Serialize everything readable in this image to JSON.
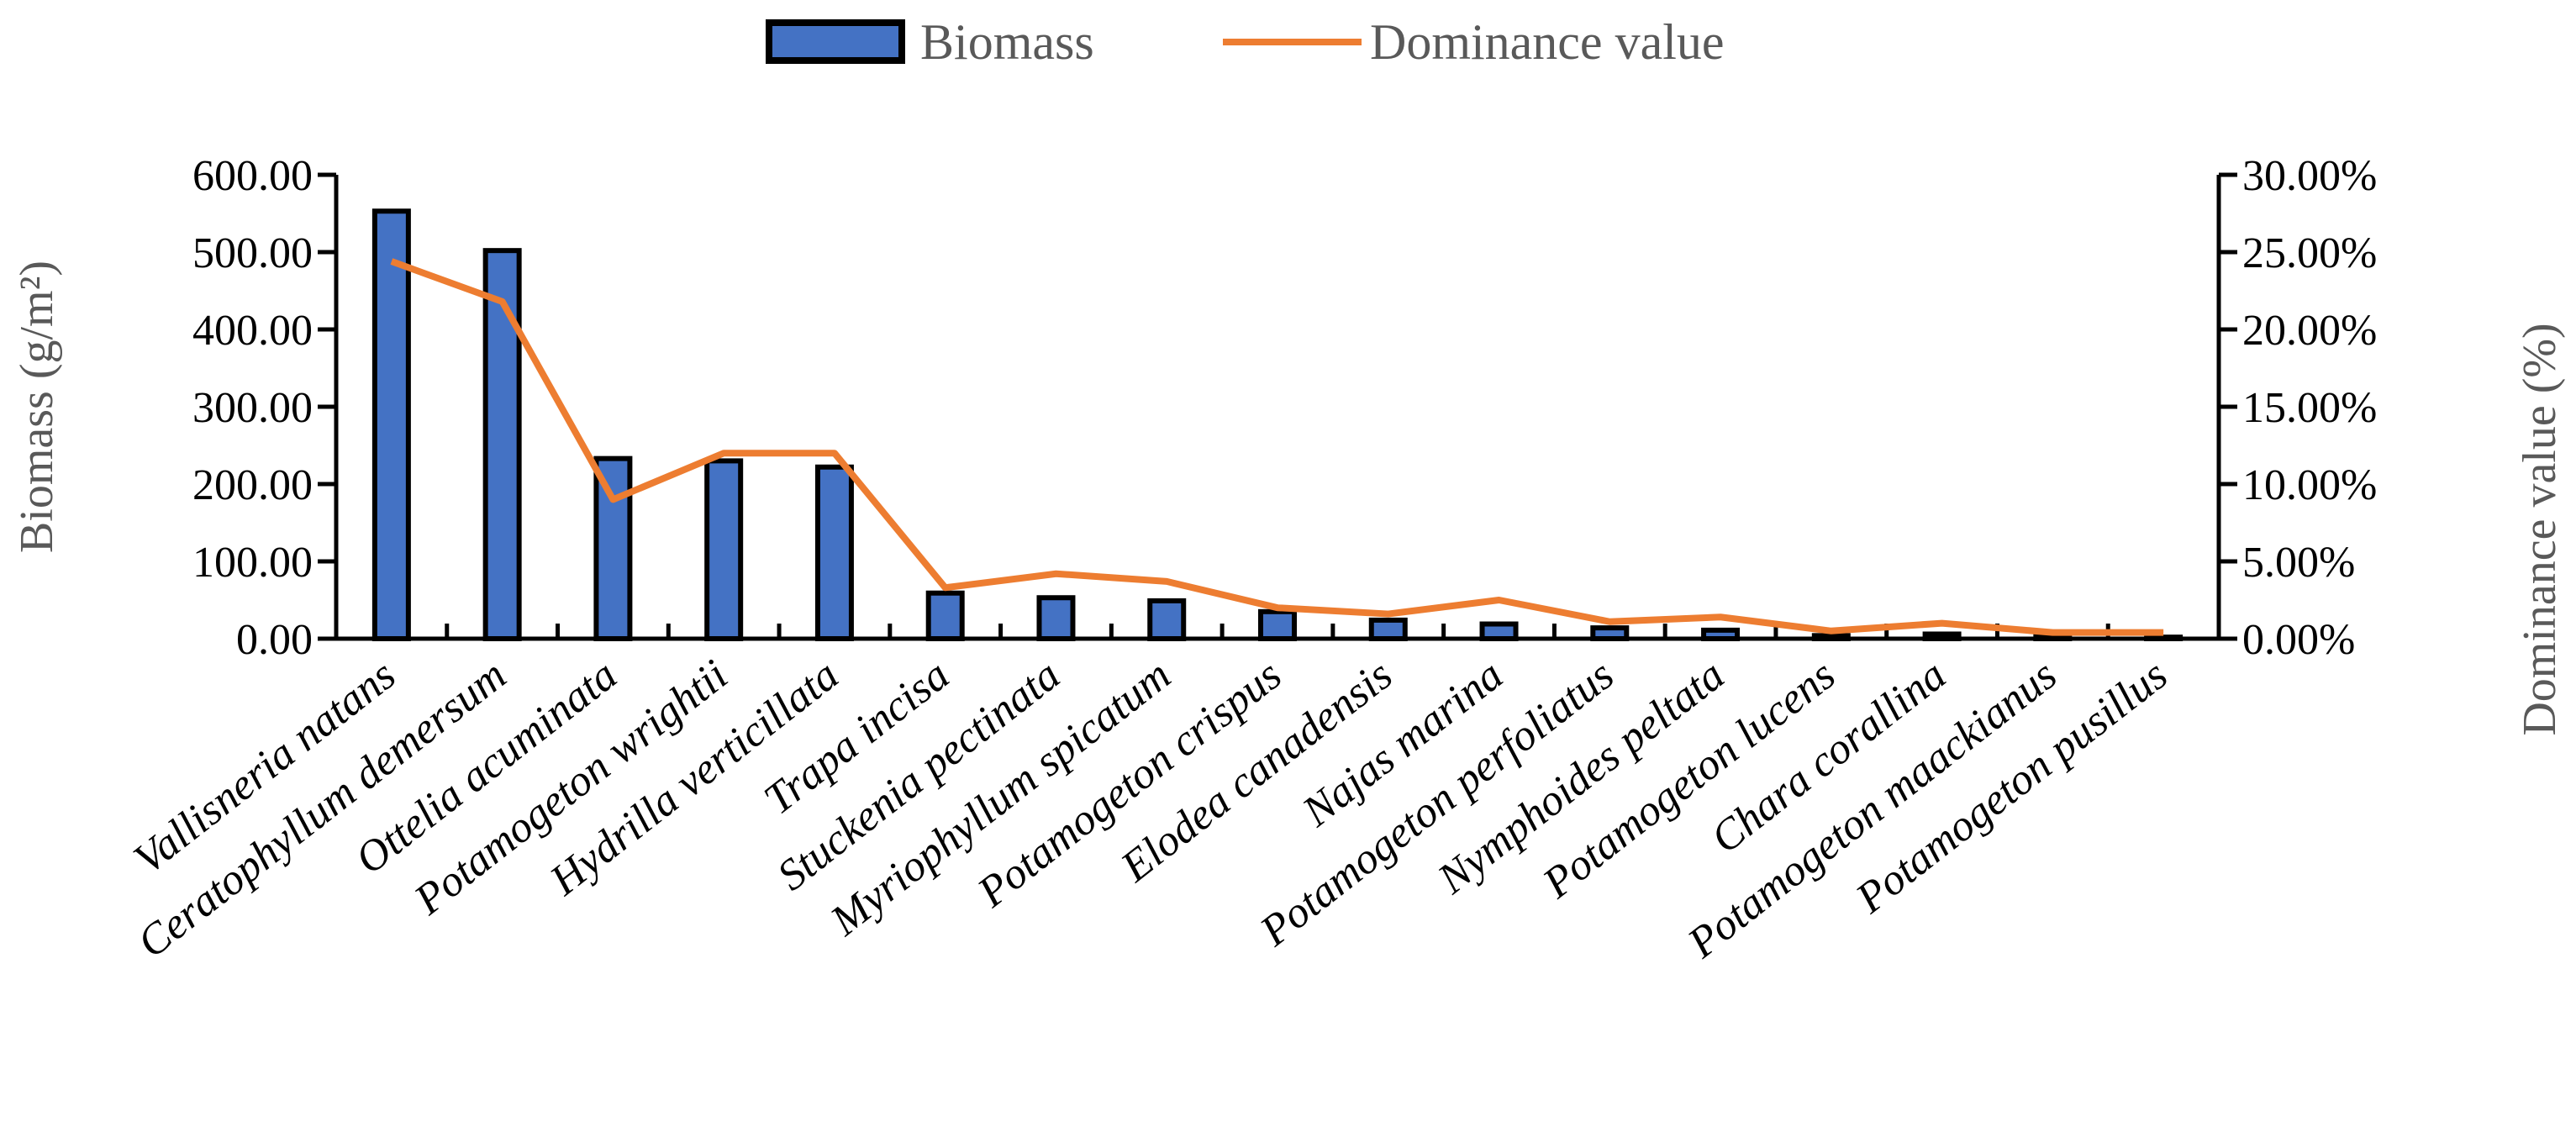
{
  "chart_data": {
    "type": "bar",
    "categories": [
      "Vallisneria natans",
      "Ceratophyllum demersum",
      "Ottelia acuminata",
      "Potamogeton wrightii",
      "Hydrilla verticillata",
      "Trapa incisa",
      "Stuckenia pectinata",
      "Myriophyllum spicatum",
      "Potamogeton crispus",
      "Elodea canadensis",
      "Najas marina",
      "Potamogeton perfoliatus",
      "Nymphoides peltata",
      "Potamogeton lucens",
      "Chara corallina",
      "Potamogeton maackianus",
      "Potamogeton pusillus"
    ],
    "series": [
      {
        "name": "Biomass",
        "type": "bar",
        "axis": "left",
        "values": [
          553,
          502,
          233,
          230,
          222,
          59,
          53,
          49,
          35,
          24,
          19,
          14,
          11,
          4,
          6,
          3,
          2
        ]
      },
      {
        "name": "Dominance value",
        "type": "line",
        "axis": "right",
        "values": [
          24.4,
          21.8,
          9.0,
          12.0,
          12.0,
          3.3,
          4.2,
          3.7,
          2.0,
          1.6,
          2.5,
          1.1,
          1.4,
          0.5,
          1.0,
          0.4,
          0.4
        ]
      }
    ],
    "y_left": {
      "label": "Biomass (g/m²)",
      "range": [
        0,
        600
      ],
      "ticks": [
        "0.00",
        "100.00",
        "200.00",
        "300.00",
        "400.00",
        "500.00",
        "600.00"
      ]
    },
    "y_right": {
      "label": "Dominance value (%)",
      "range": [
        0,
        30
      ],
      "ticks": [
        "0.00%",
        "5.00%",
        "10.00%",
        "15.00%",
        "20.00%",
        "25.00%",
        "30.00%"
      ]
    },
    "legend_position": "top-center",
    "grid": false,
    "colors": {
      "bar_fill": "#4472C4",
      "bar_stroke": "#000000",
      "line": "#ED7D31"
    }
  }
}
